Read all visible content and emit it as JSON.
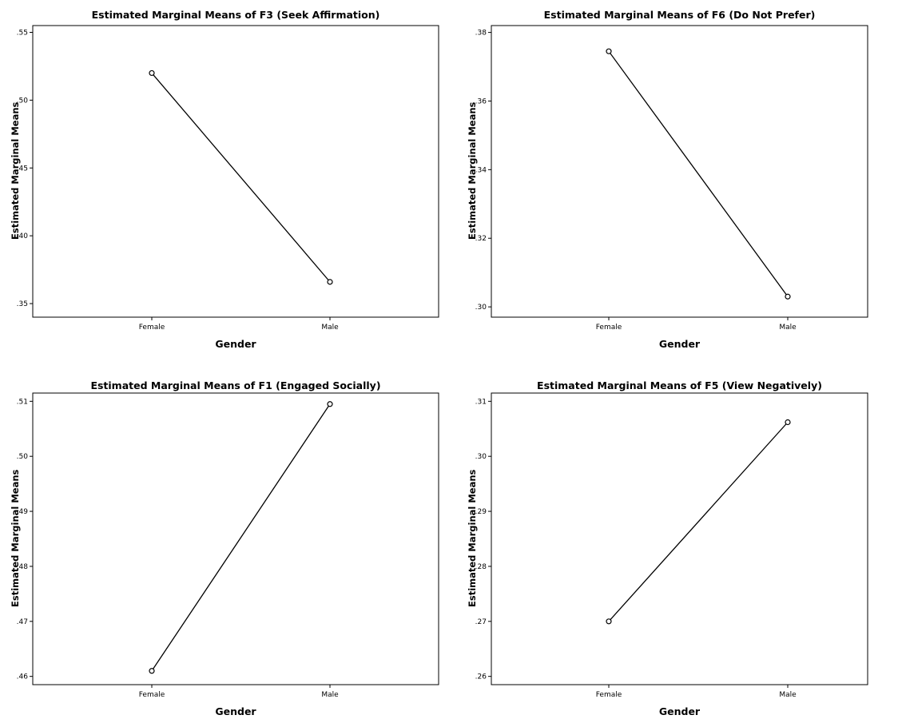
{
  "chart_data": [
    {
      "type": "line",
      "title": "Estimated Marginal Means of F3 (Seek Affirmation)",
      "xlabel": "Gender",
      "ylabel": "Estimated Marginal Means",
      "categories": [
        "Female",
        "Male"
      ],
      "values": [
        0.52,
        0.366
      ],
      "ylim": [
        0.34,
        0.555
      ],
      "yticks": [
        0.35,
        0.4,
        0.45,
        0.5,
        0.55
      ],
      "yticklabels": [
        ".35",
        ".40",
        ".45",
        ".50",
        ".55"
      ],
      "grid": false,
      "marker": "circle"
    },
    {
      "type": "line",
      "title": "Estimated Marginal Means of F6 (Do Not Prefer)",
      "xlabel": "Gender",
      "ylabel": "Estimated Marginal Means",
      "categories": [
        "Female",
        "Male"
      ],
      "values": [
        0.3745,
        0.303
      ],
      "ylim": [
        0.297,
        0.382
      ],
      "yticks": [
        0.3,
        0.32,
        0.34,
        0.36,
        0.38
      ],
      "yticklabels": [
        ".30",
        ".32",
        ".34",
        ".36",
        ".38"
      ],
      "grid": false,
      "marker": "circle"
    },
    {
      "type": "line",
      "title": "Estimated Marginal Means of F1 (Engaged Socially)",
      "xlabel": "Gender",
      "ylabel": "Estimated Marginal Means",
      "categories": [
        "Female",
        "Male"
      ],
      "values": [
        0.461,
        0.5095
      ],
      "ylim": [
        0.4585,
        0.5115
      ],
      "yticks": [
        0.46,
        0.47,
        0.48,
        0.49,
        0.5,
        0.51
      ],
      "yticklabels": [
        ".46",
        ".47",
        ".48",
        ".49",
        ".50",
        ".51"
      ],
      "grid": false,
      "marker": "circle"
    },
    {
      "type": "line",
      "title": "Estimated Marginal Means of F5 (View Negatively)",
      "xlabel": "Gender",
      "ylabel": "Estimated Marginal Means",
      "categories": [
        "Female",
        "Male"
      ],
      "values": [
        0.27,
        0.3062
      ],
      "ylim": [
        0.2585,
        0.3115
      ],
      "yticks": [
        0.26,
        0.27,
        0.28,
        0.29,
        0.3,
        0.31
      ],
      "yticklabels": [
        ".26",
        ".27",
        ".28",
        ".29",
        ".30",
        ".31"
      ],
      "grid": false,
      "marker": "circle"
    }
  ]
}
